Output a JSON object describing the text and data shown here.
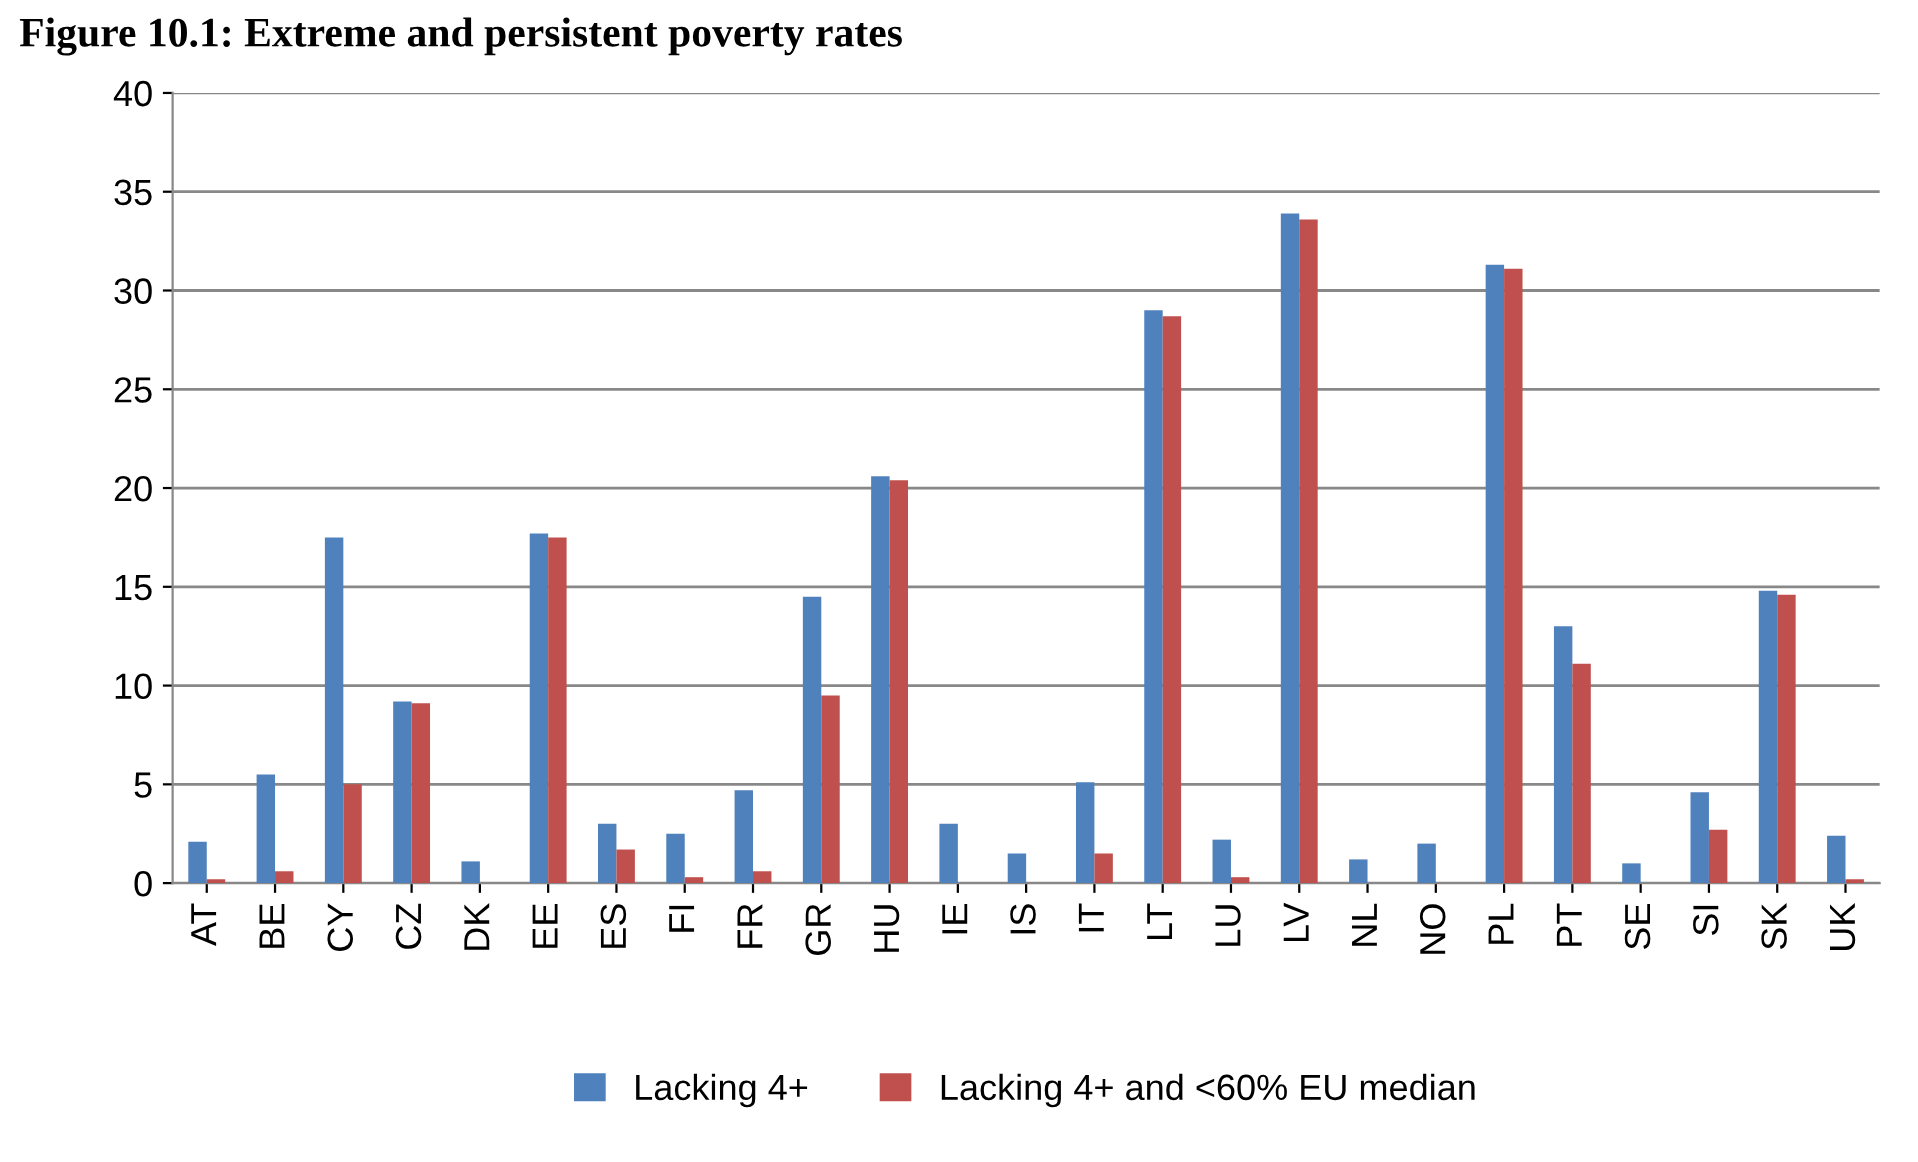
{
  "chart_data": {
    "type": "bar",
    "title": "Figure 10.1: Extreme and persistent poverty rates",
    "categories": [
      "AT",
      "BE",
      "CY",
      "CZ",
      "DK",
      "EE",
      "ES",
      "FI",
      "FR",
      "GR",
      "HU",
      "IE",
      "IS",
      "IT",
      "LT",
      "LU",
      "LV",
      "NL",
      "NO",
      "PL",
      "PT",
      "SE",
      "SI",
      "SK",
      "UK"
    ],
    "series": [
      {
        "name": "Lacking 4+",
        "color": "#4f81bd",
        "values": [
          2.1,
          5.5,
          17.5,
          9.2,
          1.1,
          17.7,
          3.0,
          2.5,
          4.7,
          14.5,
          20.6,
          3.0,
          1.5,
          5.1,
          29.0,
          2.2,
          33.9,
          1.2,
          2.0,
          31.3,
          13.0,
          1.0,
          4.6,
          14.8,
          2.4
        ]
      },
      {
        "name": "Lacking 4+ and <60% EU median",
        "color": "#c0504d",
        "values": [
          0.2,
          0.6,
          5.0,
          9.1,
          null,
          17.5,
          1.7,
          0.3,
          0.6,
          9.5,
          20.4,
          null,
          null,
          1.5,
          28.7,
          0.3,
          33.6,
          null,
          null,
          31.1,
          11.1,
          null,
          2.7,
          14.6,
          0.2
        ]
      }
    ],
    "ylim": [
      0,
      40
    ],
    "yticks": [
      0,
      5,
      10,
      15,
      20,
      25,
      30,
      35,
      40
    ],
    "grid": "y",
    "legend": "bottom"
  }
}
